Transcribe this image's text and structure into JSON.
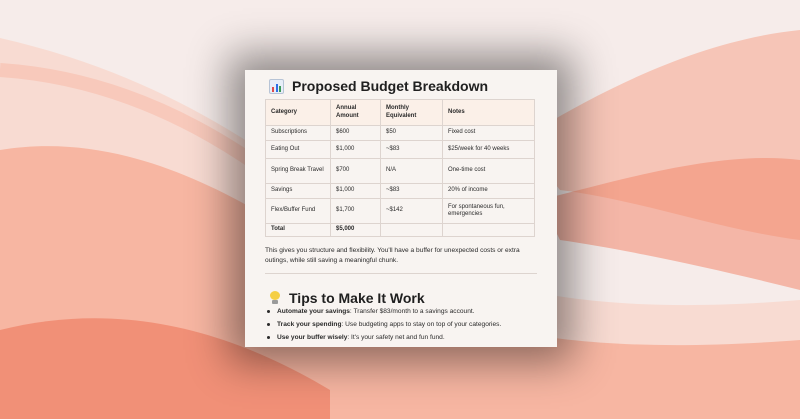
{
  "heading_budget": "Proposed Budget Breakdown",
  "icons": {
    "heading_budget": "bar-chart-icon",
    "heading_tips": "light-bulb-icon"
  },
  "table": {
    "headers": {
      "category": "Category",
      "annual": "Annual Amount",
      "monthly": "Monthly Equivalent",
      "notes": "Notes"
    },
    "rows": [
      {
        "category": "Subscriptions",
        "annual": "$600",
        "monthly": "$50",
        "notes": "Fixed cost"
      },
      {
        "category": "Eating Out",
        "annual": "$1,000",
        "monthly": "~$83",
        "notes": "$25/week for 40 weeks"
      },
      {
        "category": "Spring Break Travel",
        "annual": "$700",
        "monthly": "N/A",
        "notes": "One-time cost"
      },
      {
        "category": "Savings",
        "annual": "$1,000",
        "monthly": "~$83",
        "notes": "20% of income"
      },
      {
        "category": "Flex/Buffer Fund",
        "annual": "$1,700",
        "monthly": "~$142",
        "notes": "For spontaneous fun, emergencies"
      }
    ],
    "total": {
      "category": "Total",
      "annual": "$5,000",
      "monthly": "",
      "notes": ""
    }
  },
  "paragraph": "This gives you structure and flexibility. You'll have a buffer for unexpected costs or extra outings, while still saving a meaningful chunk.",
  "heading_tips": "Tips to Make It Work",
  "tips": [
    {
      "label": "Automate your savings",
      "text": ": Transfer $83/month to a savings account."
    },
    {
      "label": "Track your spending",
      "text": ": Use budgeting apps to stay on top of your categories."
    },
    {
      "label": "Use your buffer wisely",
      "text": ": It's your safety net and fun fund."
    }
  ],
  "colors": {
    "accent_wave": "#f7a085",
    "card_bg": "#f8f4f1",
    "table_header_bg": "#fbf0e8"
  }
}
